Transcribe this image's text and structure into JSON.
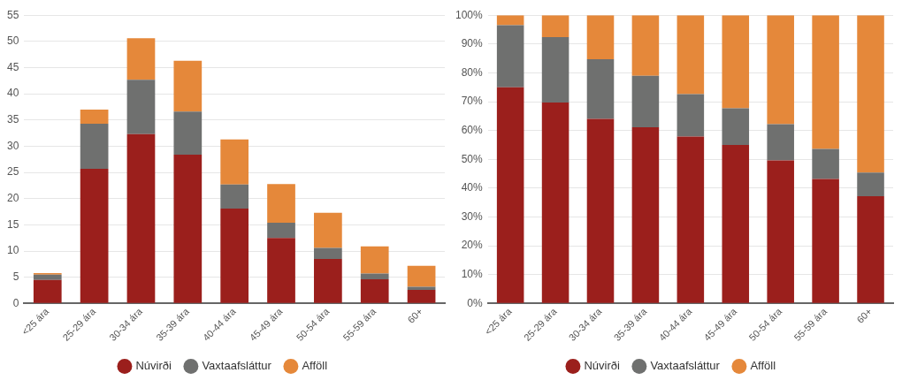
{
  "chart_data": [
    {
      "type": "bar",
      "stacked": true,
      "categories": [
        "<25 ára",
        "25-29 ára",
        "30-34 ára",
        "35-39 ára",
        "40-44 ára",
        "45-49 ára",
        "50-54 ára",
        "55-59 ára",
        "60+"
      ],
      "series": [
        {
          "name": "Núvirði",
          "color": "#9b1f1c",
          "values": [
            4.5,
            25.7,
            32.3,
            28.4,
            18.1,
            12.5,
            8.5,
            4.6,
            2.6
          ]
        },
        {
          "name": "Vaxtaafsláttur",
          "color": "#6f706f",
          "values": [
            1.0,
            8.6,
            10.4,
            8.2,
            4.6,
            2.9,
            2.1,
            1.1,
            0.6
          ]
        },
        {
          "name": "Afföll",
          "color": "#e5883a",
          "values": [
            0.3,
            2.7,
            7.9,
            9.7,
            8.6,
            7.4,
            6.7,
            5.2,
            4.0
          ]
        }
      ],
      "ylim": [
        0,
        55
      ],
      "yticks": [
        0,
        5,
        10,
        15,
        20,
        25,
        30,
        35,
        40,
        45,
        50,
        55
      ],
      "grid": "y",
      "legend": "bottom"
    },
    {
      "type": "bar",
      "stacked": true,
      "categories": [
        "<25 ára",
        "25-29 ára",
        "30-34 ára",
        "35-39 ára",
        "40-44 ára",
        "45-49 ára",
        "50-54 ára",
        "55-59 ára",
        "60+"
      ],
      "series": [
        {
          "name": "Núvirði",
          "color": "#9b1f1c",
          "values": [
            75.0,
            69.7,
            64.0,
            61.1,
            57.9,
            55.0,
            49.6,
            43.2,
            37.2
          ]
        },
        {
          "name": "Vaxtaafsláttur",
          "color": "#6f706f",
          "values": [
            21.5,
            22.7,
            20.7,
            17.9,
            14.7,
            12.7,
            12.6,
            10.4,
            8.2
          ]
        },
        {
          "name": "Afföll",
          "color": "#e5883a",
          "values": [
            3.5,
            7.6,
            15.3,
            21.0,
            27.4,
            32.3,
            37.8,
            46.4,
            54.6
          ]
        }
      ],
      "ylim": [
        0,
        100
      ],
      "yticks": [
        {
          "value": 0,
          "label": "0%"
        },
        {
          "value": 10,
          "label": "10%"
        },
        {
          "value": 20,
          "label": "20%"
        },
        {
          "value": 30,
          "label": "30%"
        },
        {
          "value": 40,
          "label": "40%"
        },
        {
          "value": 50,
          "label": "50%"
        },
        {
          "value": 60,
          "label": "60%"
        },
        {
          "value": 70,
          "label": "70%"
        },
        {
          "value": 80,
          "label": "80%"
        },
        {
          "value": 90,
          "label": "90%"
        },
        {
          "value": 100,
          "label": "100%"
        }
      ],
      "grid": "y",
      "legend": "bottom"
    }
  ]
}
